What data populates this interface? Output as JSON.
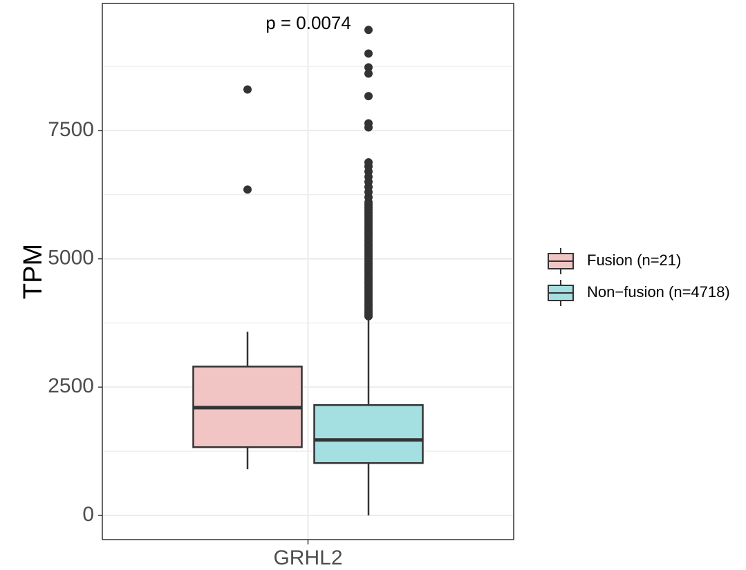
{
  "chart_data": {
    "type": "box",
    "title": "",
    "xlabel": "",
    "ylabel": "TPM",
    "categories": [
      "GRHL2"
    ],
    "ylim": [
      -430,
      9830
    ],
    "yticks": [
      0,
      2500,
      5000,
      7500
    ],
    "grid": true,
    "legend_position": "right",
    "annotation": "p = 0.0074",
    "series": [
      {
        "name": "Fusion (n=21)",
        "color": "#f0c5c4",
        "min": 900,
        "q1": 1330,
        "median": 2100,
        "q3": 2900,
        "max": 3580,
        "outliers": [
          6350,
          8300
        ]
      },
      {
        "name": "Non−fusion (n=4718)",
        "color": "#a4dfe1",
        "min": 0,
        "q1": 1020,
        "median": 1470,
        "q3": 2150,
        "max": 3850,
        "outliers": [
          3880,
          3920,
          3960,
          4000,
          4050,
          4100,
          4150,
          4200,
          4250,
          4300,
          4350,
          4400,
          4450,
          4500,
          4550,
          4600,
          4650,
          4700,
          4750,
          4800,
          4850,
          4900,
          4950,
          5000,
          5050,
          5100,
          5150,
          5200,
          5250,
          5300,
          5350,
          5400,
          5450,
          5500,
          5550,
          5600,
          5650,
          5700,
          5750,
          5800,
          5850,
          5900,
          5950,
          6000,
          6050,
          6100,
          6200,
          6300,
          6400,
          6500,
          6600,
          6700,
          6800,
          6880,
          7560,
          7640,
          8170,
          8610,
          8730,
          9000,
          9460
        ]
      }
    ]
  },
  "colors": {
    "box_stroke": "#333333",
    "grid": "#ebebeb",
    "panel_border": "#333333"
  }
}
